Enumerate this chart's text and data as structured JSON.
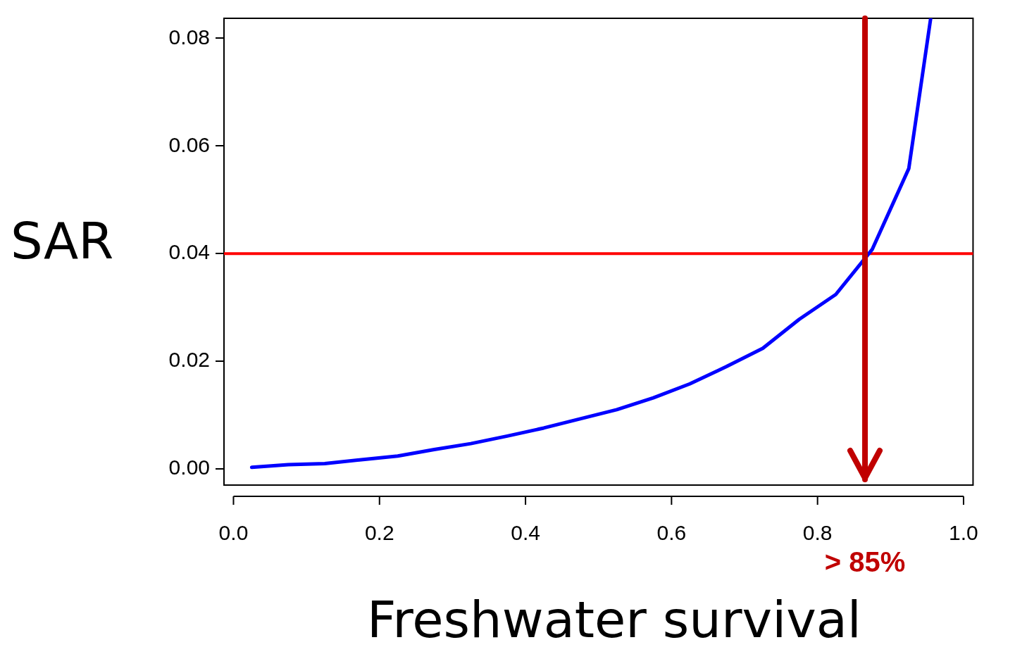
{
  "chart_data": {
    "type": "line",
    "xlabel": "Freshwater survival",
    "ylabel": "SAR",
    "x": [
      0.025,
      0.075,
      0.125,
      0.175,
      0.225,
      0.275,
      0.325,
      0.375,
      0.425,
      0.475,
      0.525,
      0.575,
      0.625,
      0.675,
      0.725,
      0.775,
      0.825,
      0.875,
      0.925,
      0.955
    ],
    "series": [
      {
        "color": "#0000ff",
        "values": [
          0.0003,
          0.0008,
          0.001,
          0.0017,
          0.0024,
          0.0036,
          0.0047,
          0.0061,
          0.0076,
          0.0093,
          0.011,
          0.0132,
          0.0158,
          0.019,
          0.0224,
          0.0278,
          0.0324,
          0.0408,
          0.0558,
          0.0837
        ]
      }
    ],
    "xlim": [
      -0.013,
      1.013
    ],
    "xticks": [
      {
        "value": 0,
        "label": "0.0"
      },
      0.2,
      0.4,
      0.6,
      0.8,
      {
        "value": 1,
        "label": "1.0"
      }
    ],
    "ylim": [
      -0.003,
      0.0837
    ],
    "yticks": [
      {
        "value": 0,
        "label": "0.00"
      },
      0.02,
      0.04,
      0.06,
      0.08
    ],
    "ref_lines": [
      {
        "axis": "y",
        "value": 0.04,
        "color": "#ff0000"
      },
      {
        "axis": "x",
        "value": 0.865,
        "color": "#c00000"
      }
    ],
    "annotations": [
      "> 85%"
    ],
    "grid": false,
    "legend": false,
    "marker": "none",
    "line_style": "solid"
  }
}
